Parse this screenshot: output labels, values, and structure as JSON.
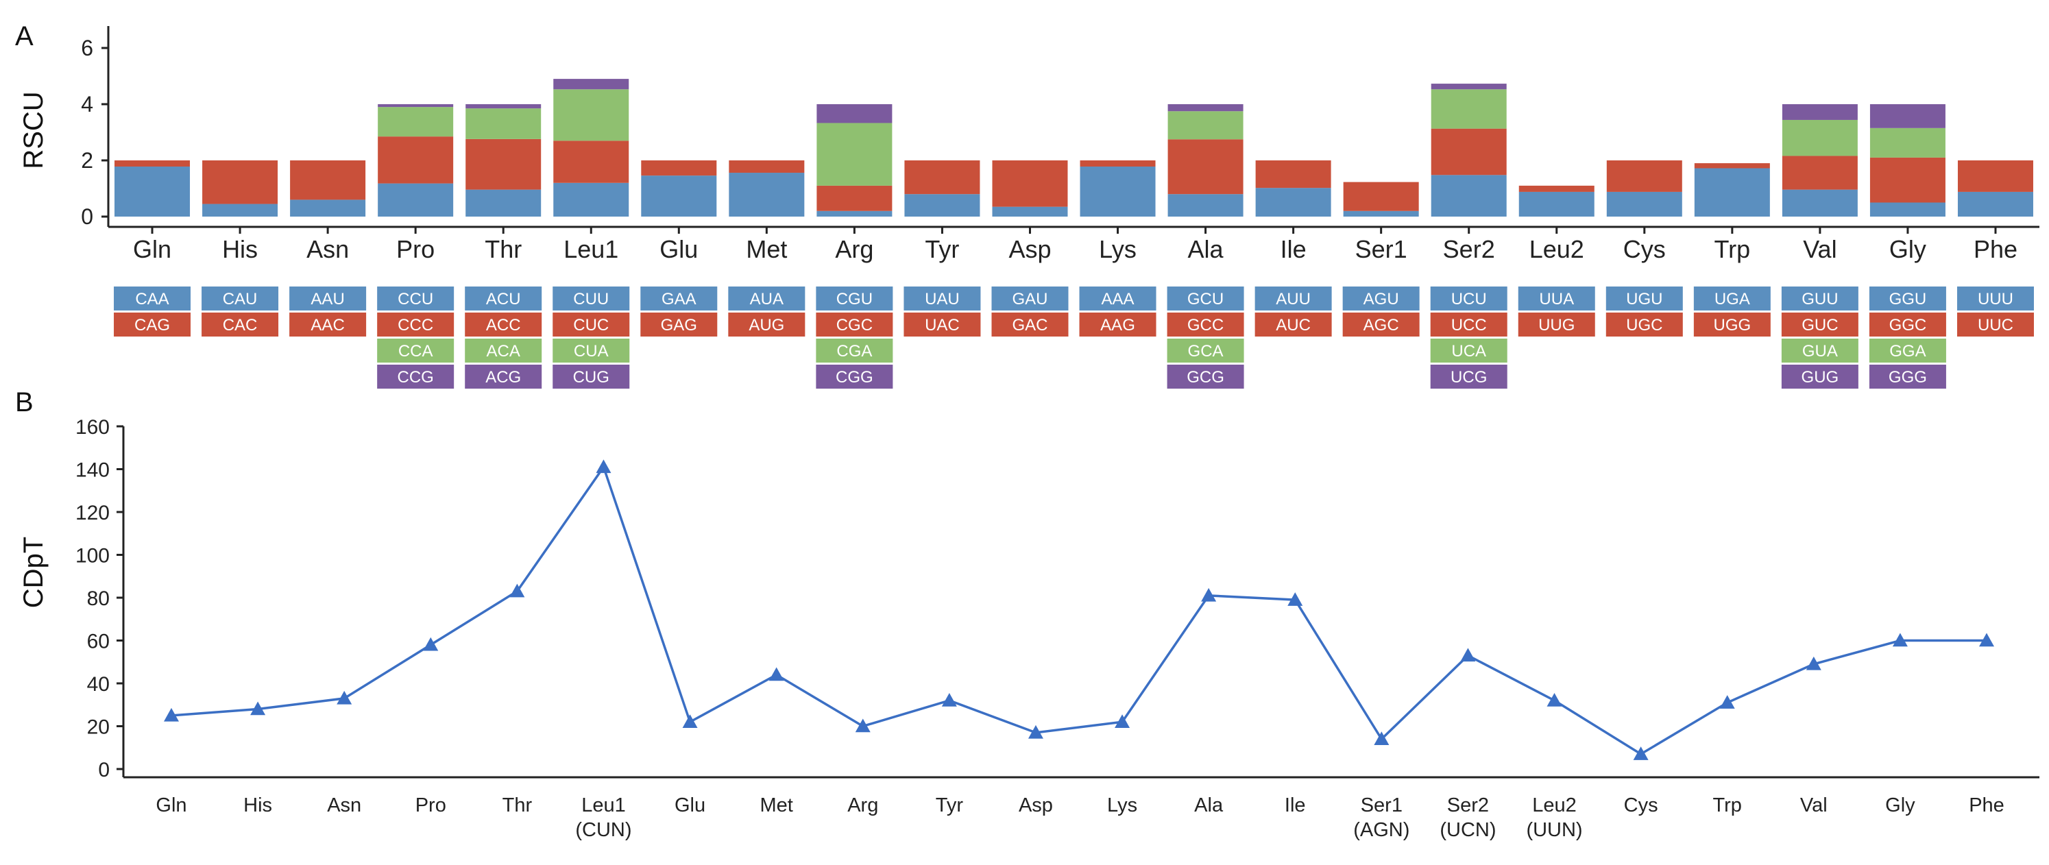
{
  "colors": {
    "codon1": "#5b8fbf",
    "codon2": "#c9503a",
    "codon3": "#8fc070",
    "codon4": "#7b5a9e",
    "line": "#3b6fc4",
    "axis": "#222222"
  },
  "panel_a": {
    "label": "A",
    "ylabel": "RSCU",
    "yticks": [
      "0",
      "2",
      "4",
      "6"
    ]
  },
  "panel_b": {
    "label": "B",
    "ylabel": "CDpT",
    "yticks": [
      "0",
      "20",
      "40",
      "60",
      "80",
      "100",
      "120",
      "140",
      "160"
    ]
  },
  "chart_data": [
    {
      "type": "bar",
      "stacked": true,
      "title": "",
      "xlabel": "",
      "ylabel": "RSCU",
      "ylim": [
        0,
        6.5
      ],
      "yticks": [
        0,
        2,
        4,
        6
      ],
      "categories": [
        "Gln",
        "His",
        "Asn",
        "Pro",
        "Thr",
        "Leu1",
        "Glu",
        "Met",
        "Arg",
        "Tyr",
        "Asp",
        "Lys",
        "Ala",
        "Ile",
        "Ser1",
        "Ser2",
        "Leu2",
        "Cys",
        "Trp",
        "Val",
        "Gly",
        "Phe"
      ],
      "segments": [
        [
          1.78,
          0.22
        ],
        [
          0.45,
          1.55
        ],
        [
          0.6,
          1.4
        ],
        [
          1.18,
          1.67,
          1.05,
          0.1
        ],
        [
          0.96,
          1.8,
          1.09,
          0.15
        ],
        [
          1.2,
          1.5,
          1.83,
          0.37
        ],
        [
          1.46,
          0.54
        ],
        [
          1.56,
          0.44
        ],
        [
          0.2,
          0.9,
          2.23,
          0.67
        ],
        [
          0.8,
          1.2
        ],
        [
          0.35,
          1.65
        ],
        [
          1.78,
          0.22
        ],
        [
          0.8,
          1.95,
          1.0,
          0.25
        ],
        [
          1.02,
          0.98
        ],
        [
          0.2,
          1.03
        ],
        [
          1.48,
          1.65,
          1.4,
          0.2
        ],
        [
          0.88,
          0.22
        ],
        [
          0.88,
          1.12
        ],
        [
          1.72,
          0.18
        ],
        [
          0.96,
          1.2,
          1.28,
          0.56
        ],
        [
          0.5,
          1.6,
          1.05,
          0.85
        ],
        [
          0.88,
          1.12
        ]
      ],
      "codons": [
        [
          "CAA",
          "CAG"
        ],
        [
          "CAU",
          "CAC"
        ],
        [
          "AAU",
          "AAC"
        ],
        [
          "CCU",
          "CCC",
          "CCA",
          "CCG"
        ],
        [
          "ACU",
          "ACC",
          "ACA",
          "ACG"
        ],
        [
          "CUU",
          "CUC",
          "CUA",
          "CUG"
        ],
        [
          "GAA",
          "GAG"
        ],
        [
          "AUA",
          "AUG"
        ],
        [
          "CGU",
          "CGC",
          "CGA",
          "CGG"
        ],
        [
          "UAU",
          "UAC"
        ],
        [
          "GAU",
          "GAC"
        ],
        [
          "AAA",
          "AAG"
        ],
        [
          "GCU",
          "GCC",
          "GCA",
          "GCG"
        ],
        [
          "AUU",
          "AUC"
        ],
        [
          "AGU",
          "AGC"
        ],
        [
          "UCU",
          "UCC",
          "UCA",
          "UCG"
        ],
        [
          "UUA",
          "UUG"
        ],
        [
          "UGU",
          "UGC"
        ],
        [
          "UGA",
          "UGG"
        ],
        [
          "GUU",
          "GUC",
          "GUA",
          "GUG"
        ],
        [
          "GGU",
          "GGC",
          "GGA",
          "GGG"
        ],
        [
          "UUU",
          "UUC"
        ]
      ]
    },
    {
      "type": "line",
      "title": "",
      "xlabel": "",
      "ylabel": "CDpT",
      "ylim": [
        0,
        160
      ],
      "yticks": [
        0,
        20,
        40,
        60,
        80,
        100,
        120,
        140,
        160
      ],
      "marker": "triangle",
      "categories": [
        [
          "Gln"
        ],
        [
          "His"
        ],
        [
          "Asn"
        ],
        [
          "Pro"
        ],
        [
          "Thr"
        ],
        [
          "Leu1",
          "(CUN)"
        ],
        [
          "Glu"
        ],
        [
          "Met"
        ],
        [
          "Arg"
        ],
        [
          "Tyr"
        ],
        [
          "Asp"
        ],
        [
          "Lys"
        ],
        [
          "Ala"
        ],
        [
          "Ile"
        ],
        [
          "Ser1",
          "(AGN)"
        ],
        [
          "Ser2",
          "(UCN)"
        ],
        [
          "Leu2",
          "(UUN)"
        ],
        [
          "Cys"
        ],
        [
          "Trp"
        ],
        [
          "Val"
        ],
        [
          "Gly"
        ],
        [
          "Phe"
        ]
      ],
      "values": [
        25,
        28,
        33,
        58,
        83,
        141,
        22,
        44,
        20,
        32,
        17,
        22,
        81,
        79,
        14,
        53,
        32,
        7,
        31,
        49,
        60,
        60
      ]
    }
  ]
}
